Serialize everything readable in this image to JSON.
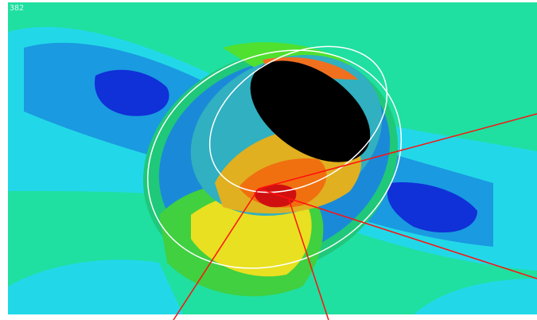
{
  "label": "382"
}
